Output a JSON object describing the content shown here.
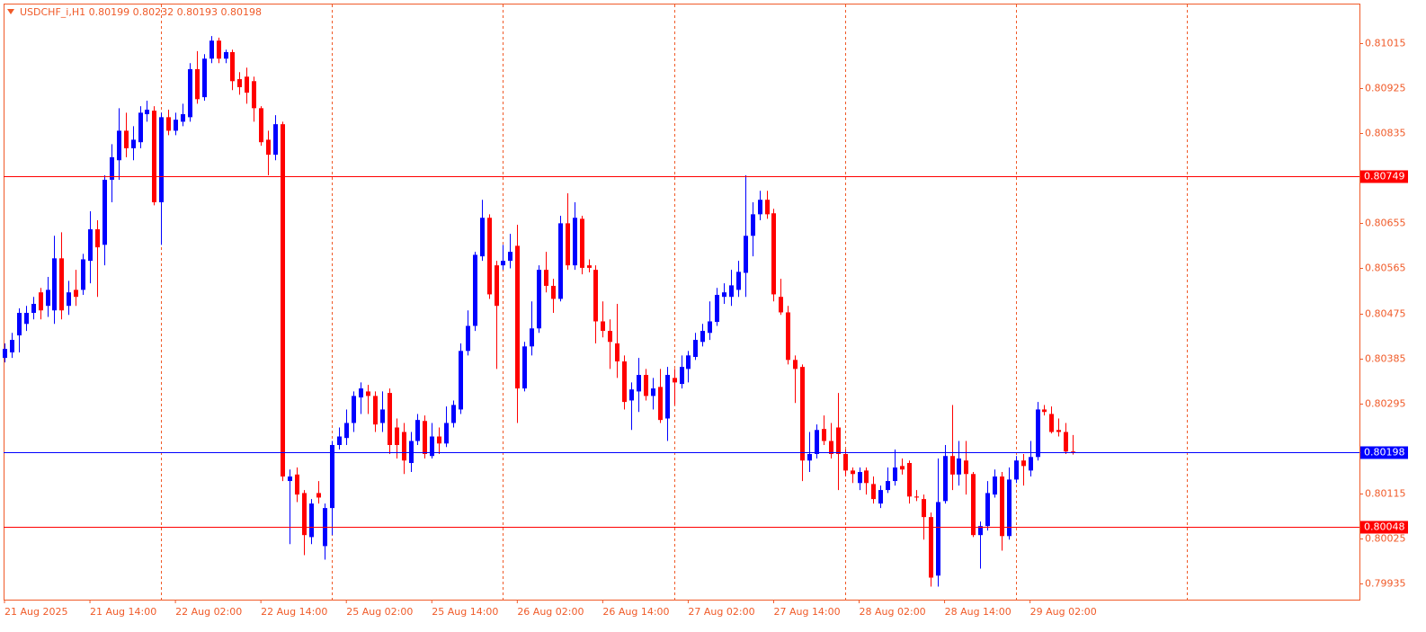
{
  "chart_data": {
    "type": "candlestick",
    "title": "USDCHF_i,H1  0.80199 0.80232 0.80193 0.80198",
    "up_color": "#0000ff",
    "down_color": "#ff0000",
    "axis_color": "#f05a28",
    "open": [
      0.80386,
      0.80397,
      0.80431,
      0.80454,
      0.80476,
      0.80517,
      0.8049,
      0.80481,
      0.80585,
      0.8049,
      0.80522,
      0.80522,
      0.8058,
      0.80643,
      0.80612,
      0.80742,
      0.80781,
      0.8084,
      0.80805,
      0.80817,
      0.80873,
      0.8088,
      0.80697,
      0.80867,
      0.8084,
      0.80858,
      0.80867,
      0.80963,
      0.80907,
      0.80984,
      0.8102,
      0.80984,
      0.80997,
      0.80943,
      0.80948,
      0.80939,
      0.80885,
      0.80822,
      0.80792,
      0.80853,
      0.8014,
      0.80153,
      0.80116,
      0.80028,
      0.80116,
      0.8001,
      0.80086,
      0.80212,
      0.80226,
      0.80256,
      0.80307,
      0.80319,
      0.8031,
      0.80256,
      0.80316,
      0.80247,
      0.80238,
      0.80176,
      0.8022,
      0.8026,
      0.8019,
      0.80229,
      0.80215,
      0.80256,
      0.80283,
      0.804,
      0.8045,
      0.80589,
      0.80666,
      0.80571,
      0.80571,
      0.8058,
      0.8061,
      0.80325,
      0.80409,
      0.80445,
      0.80562,
      0.8053,
      0.80504,
      0.80655,
      0.80571,
      0.80664,
      0.80571,
      0.80562,
      0.80459,
      0.8044,
      0.80415,
      0.80379,
      0.80301,
      0.80319,
      0.80352,
      0.8031,
      0.80328,
      0.80265,
      0.80346,
      0.80334,
      0.80364,
      0.80388,
      0.80418,
      0.80436,
      0.80458,
      0.80508,
      0.80508,
      0.80522,
      0.80556,
      0.8063,
      0.80673,
      0.80702,
      0.80675,
      0.80508,
      0.80477,
      0.80382,
      0.80368,
      0.80181,
      0.80194,
      0.80244,
      0.8022,
      0.80247,
      0.80194,
      0.80161,
      0.80136,
      0.80161,
      0.80134,
      0.80095,
      0.80122,
      0.8014,
      0.8017,
      0.80176,
      0.80109,
      0.80104,
      0.80068,
      0.79951,
      0.801,
      0.8019,
      0.80153,
      0.80181,
      0.80154,
      0.80032,
      0.8005,
      0.80113,
      0.80149,
      0.8003,
      0.80143,
      0.80181,
      0.80161,
      0.80188,
      0.80283,
      0.80274,
      0.80242,
      0.80238,
      0.80199
    ],
    "high": [
      0.80415,
      0.80436,
      0.80485,
      0.8049,
      0.80508,
      0.80526,
      0.80548,
      0.8063,
      0.80637,
      0.8054,
      0.80562,
      0.80594,
      0.80679,
      0.80661,
      0.80751,
      0.80813,
      0.80885,
      0.80876,
      0.80849,
      0.80889,
      0.809,
      0.80889,
      0.80876,
      0.80882,
      0.80876,
      0.80894,
      0.80975,
      0.80999,
      0.80993,
      0.81029,
      0.81026,
      0.81002,
      0.81002,
      0.80957,
      0.80966,
      0.80948,
      0.80889,
      0.8084,
      0.80871,
      0.80858,
      0.80163,
      0.80167,
      0.80122,
      0.80104,
      0.8014,
      0.80095,
      0.8022,
      0.80247,
      0.80283,
      0.80319,
      0.80337,
      0.80332,
      0.80319,
      0.80319,
      0.80325,
      0.80265,
      0.80256,
      0.80238,
      0.80274,
      0.80271,
      0.80256,
      0.80247,
      0.80289,
      0.80301,
      0.80415,
      0.80481,
      0.80598,
      0.80702,
      0.80673,
      0.8058,
      0.80612,
      0.80634,
      0.80652,
      0.80418,
      0.80499,
      0.80571,
      0.80598,
      0.80544,
      0.8067,
      0.80715,
      0.80697,
      0.8067,
      0.80583,
      0.80571,
      0.80499,
      0.80463,
      0.80494,
      0.80391,
      0.80337,
      0.80386,
      0.80364,
      0.80346,
      0.80364,
      0.80368,
      0.80364,
      0.80391,
      0.804,
      0.80436,
      0.80454,
      0.80499,
      0.80526,
      0.80535,
      0.80562,
      0.8058,
      0.80751,
      0.80697,
      0.8072,
      0.8072,
      0.80684,
      0.80544,
      0.8049,
      0.80391,
      0.80373,
      0.80238,
      0.80253,
      0.80271,
      0.80256,
      0.80316,
      0.80203,
      0.80167,
      0.80167,
      0.80167,
      0.80149,
      0.80131,
      0.80167,
      0.80203,
      0.80185,
      0.80181,
      0.80122,
      0.80113,
      0.80077,
      0.80185,
      0.80212,
      0.80292,
      0.8022,
      0.8022,
      0.80158,
      0.80059,
      0.8014,
      0.80163,
      0.80158,
      0.80167,
      0.8019,
      0.80194,
      0.8022,
      0.80298,
      0.80292,
      0.80289,
      0.80265,
      0.80256,
      0.80232
    ],
    "low": [
      0.80377,
      0.80386,
      0.80397,
      0.8044,
      0.80463,
      0.80463,
      0.80468,
      0.80454,
      0.80463,
      0.80472,
      0.8049,
      0.80512,
      0.80535,
      0.80508,
      0.80571,
      0.80697,
      0.80742,
      0.80787,
      0.80781,
      0.80805,
      0.80858,
      0.80691,
      0.80612,
      0.80831,
      0.80831,
      0.80849,
      0.80858,
      0.80894,
      0.809,
      0.80975,
      0.80975,
      0.80975,
      0.80921,
      0.80912,
      0.80894,
      0.80858,
      0.8081,
      0.80751,
      0.80781,
      0.8014,
      0.80014,
      0.80098,
      0.79992,
      0.80014,
      0.80095,
      0.79983,
      0.80032,
      0.80203,
      0.80212,
      0.80238,
      0.80274,
      0.80274,
      0.80238,
      0.80238,
      0.80194,
      0.80185,
      0.80154,
      0.80158,
      0.80212,
      0.80185,
      0.80185,
      0.80194,
      0.80208,
      0.80247,
      0.80274,
      0.80391,
      0.8044,
      0.8058,
      0.80504,
      0.80364,
      0.80562,
      0.80565,
      0.80256,
      0.80319,
      0.80391,
      0.80436,
      0.80517,
      0.80476,
      0.80499,
      0.80562,
      0.80562,
      0.80553,
      0.80557,
      0.80415,
      0.80427,
      0.80364,
      0.80346,
      0.80283,
      0.80242,
      0.80278,
      0.80301,
      0.80283,
      0.80256,
      0.8022,
      0.80292,
      0.80325,
      0.80337,
      0.80382,
      0.80409,
      0.80422,
      0.8045,
      0.80494,
      0.8049,
      0.80508,
      0.80508,
      0.80589,
      0.80661,
      0.80664,
      0.80499,
      0.80472,
      0.80373,
      0.80296,
      0.8014,
      0.80158,
      0.80185,
      0.80212,
      0.80185,
      0.80122,
      0.80149,
      0.80136,
      0.80122,
      0.80113,
      0.80095,
      0.80086,
      0.80116,
      0.80131,
      0.80153,
      0.80095,
      0.801,
      0.80023,
      0.79929,
      0.79929,
      0.80095,
      0.80122,
      0.80131,
      0.80113,
      0.80028,
      0.79965,
      0.80041,
      0.80107,
      0.80001,
      0.80023,
      0.80136,
      0.80131,
      0.80149,
      0.80181,
      0.80271,
      0.80235,
      0.80229,
      0.80194,
      0.80193
    ],
    "close": [
      0.80404,
      0.80422,
      0.80476,
      0.80476,
      0.80494,
      0.80481,
      0.80522,
      0.80585,
      0.80481,
      0.80517,
      0.80508,
      0.80583,
      0.80643,
      0.80607,
      0.80742,
      0.80787,
      0.8084,
      0.80805,
      0.80822,
      0.80876,
      0.80882,
      0.80697,
      0.80867,
      0.8084,
      0.80862,
      0.80873,
      0.80963,
      0.80903,
      0.80984,
      0.8102,
      0.80984,
      0.80997,
      0.80939,
      0.80927,
      0.80916,
      0.80885,
      0.80817,
      0.80792,
      0.80853,
      0.80149,
      0.80149,
      0.80113,
      0.80032,
      0.80095,
      0.80107,
      0.80086,
      0.80212,
      0.80229,
      0.80256,
      0.8031,
      0.80325,
      0.8031,
      0.80253,
      0.80283,
      0.80212,
      0.80212,
      0.80181,
      0.8022,
      0.80262,
      0.80194,
      0.80229,
      0.80215,
      0.80256,
      0.80292,
      0.804,
      0.8045,
      0.80592,
      0.80666,
      0.80513,
      0.8049,
      0.8058,
      0.80598,
      0.80325,
      0.80409,
      0.80445,
      0.80562,
      0.8053,
      0.80504,
      0.80655,
      0.80571,
      0.80666,
      0.80566,
      0.80566,
      0.80459,
      0.8044,
      0.80418,
      0.80379,
      0.80298,
      0.80323,
      0.80352,
      0.8031,
      0.80325,
      0.80262,
      0.80352,
      0.80337,
      0.80368,
      0.80391,
      0.80422,
      0.8044,
      0.80459,
      0.80512,
      0.80517,
      0.80531,
      0.80558,
      0.8063,
      0.80673,
      0.80702,
      0.80673,
      0.80513,
      0.80477,
      0.80382,
      0.80364,
      0.80181,
      0.80194,
      0.80242,
      0.8022,
      0.80194,
      0.80194,
      0.80161,
      0.80154,
      0.80158,
      0.80136,
      0.80104,
      0.80122,
      0.8014,
      0.80167,
      0.80163,
      0.80109,
      0.80107,
      0.80068,
      0.79947,
      0.80098,
      0.8019,
      0.80153,
      0.80185,
      0.80154,
      0.80032,
      0.8005,
      0.80116,
      0.80149,
      0.8003,
      0.80143,
      0.80181,
      0.8017,
      0.80188,
      0.80283,
      0.80278,
      0.80238,
      0.80238,
      0.80199,
      0.80198
    ],
    "xlim": [
      0,
      190
    ],
    "xticks": [
      {
        "value": 0,
        "label": "21 Aug 2025"
      },
      {
        "value": 12,
        "label": "21 Aug 14:00"
      },
      {
        "value": 24,
        "label": "22 Aug 02:00"
      },
      {
        "value": 36,
        "label": "22 Aug 14:00"
      },
      {
        "value": 48,
        "label": "25 Aug 02:00"
      },
      {
        "value": 60,
        "label": "25 Aug 14:00"
      },
      {
        "value": 72,
        "label": "26 Aug 02:00"
      },
      {
        "value": 84,
        "label": "26 Aug 14:00"
      },
      {
        "value": 96,
        "label": "27 Aug 02:00"
      },
      {
        "value": 108,
        "label": "27 Aug 14:00"
      },
      {
        "value": 120,
        "label": "28 Aug 02:00"
      },
      {
        "value": 132,
        "label": "28 Aug 14:00"
      },
      {
        "value": 144,
        "label": "29 Aug 02:00"
      }
    ],
    "xgrid": [
      22,
      46,
      70,
      94,
      118,
      142,
      166
    ],
    "ylim": [
      0.79903,
      0.81094
    ],
    "yticks": [
      0.81015,
      0.80925,
      0.80835,
      0.80655,
      0.80565,
      0.80475,
      0.80385,
      0.80295,
      0.80115,
      0.80025,
      0.79935
    ],
    "levels": [
      {
        "value": 0.80749,
        "color": "#ff0000"
      },
      {
        "value": 0.80198,
        "color": "#0000ff"
      },
      {
        "value": 0.80048,
        "color": "#ff0000"
      }
    ]
  }
}
